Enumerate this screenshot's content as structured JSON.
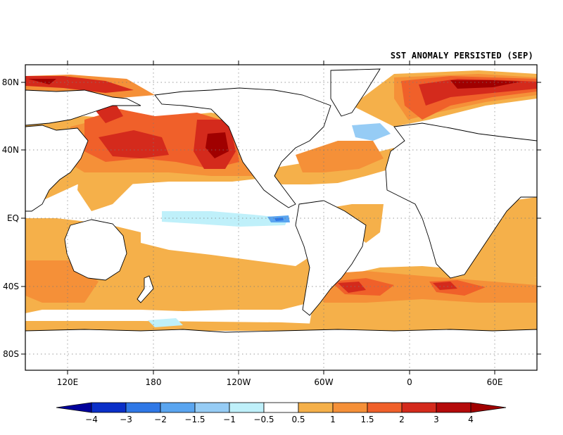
{
  "title": "SST ANOMALY PERSISTED (SEP)",
  "lat_labels": [
    "80N",
    "40N",
    "EQ",
    "40S",
    "80S"
  ],
  "lon_labels": [
    "120E",
    "180",
    "120W",
    "60W",
    "0",
    "60E"
  ],
  "legend": {
    "tick_labels": [
      "-4",
      "-3",
      "-2",
      "-1.5",
      "-1",
      "-0.5",
      "0.5",
      "1",
      "1.5",
      "2",
      "3",
      "4"
    ],
    "colors": [
      "#00009b",
      "#0a2fc8",
      "#2f78e6",
      "#5aa5f0",
      "#96ccf5",
      "#bff0fa",
      "#ffffff",
      "#f5b04a",
      "#f59038",
      "#f0602a",
      "#d42a1c",
      "#b40a0a",
      "#a00000"
    ]
  },
  "colors": {
    "positive_weak": "#f5b04a",
    "positive_mid": "#f59038",
    "positive_strong": "#f0602a",
    "positive_very_strong": "#d42a1c",
    "positive_extreme": "#a00000",
    "negative_weak": "#bff0fa",
    "negative_mid": "#96ccf5",
    "negative_strong": "#2f78e6"
  }
}
